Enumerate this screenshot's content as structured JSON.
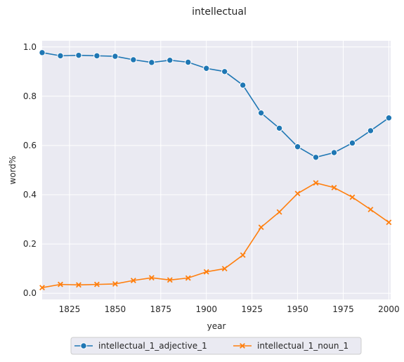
{
  "chart_data": {
    "type": "line",
    "title": "intellectual",
    "xlabel": "year",
    "ylabel": "word%",
    "xlim": [
      1810,
      2001
    ],
    "ylim": [
      -0.025,
      1.025
    ],
    "xticks": [
      1825,
      1850,
      1875,
      1900,
      1925,
      1950,
      1975,
      2000
    ],
    "yticks": [
      0.0,
      0.2,
      0.4,
      0.6,
      0.8,
      1.0
    ],
    "grid": true,
    "legend_position": "bottom-center",
    "x": [
      1810,
      1820,
      1830,
      1840,
      1850,
      1860,
      1870,
      1880,
      1890,
      1900,
      1910,
      1920,
      1930,
      1940,
      1950,
      1960,
      1970,
      1980,
      1990,
      2000
    ],
    "series": [
      {
        "name": "intellectual_1_adjective_1",
        "color": "#1f77b4",
        "marker": "circle",
        "values": [
          0.977,
          0.964,
          0.966,
          0.964,
          0.962,
          0.948,
          0.937,
          0.946,
          0.938,
          0.913,
          0.9,
          0.845,
          0.732,
          0.67,
          0.595,
          0.552,
          0.571,
          0.61,
          0.66,
          0.712
        ]
      },
      {
        "name": "intellectual_1_noun_1",
        "color": "#ff7f0e",
        "marker": "x",
        "values": [
          0.023,
          0.036,
          0.034,
          0.036,
          0.038,
          0.052,
          0.063,
          0.054,
          0.062,
          0.087,
          0.1,
          0.155,
          0.268,
          0.33,
          0.405,
          0.448,
          0.429,
          0.39,
          0.34,
          0.288
        ]
      }
    ]
  }
}
